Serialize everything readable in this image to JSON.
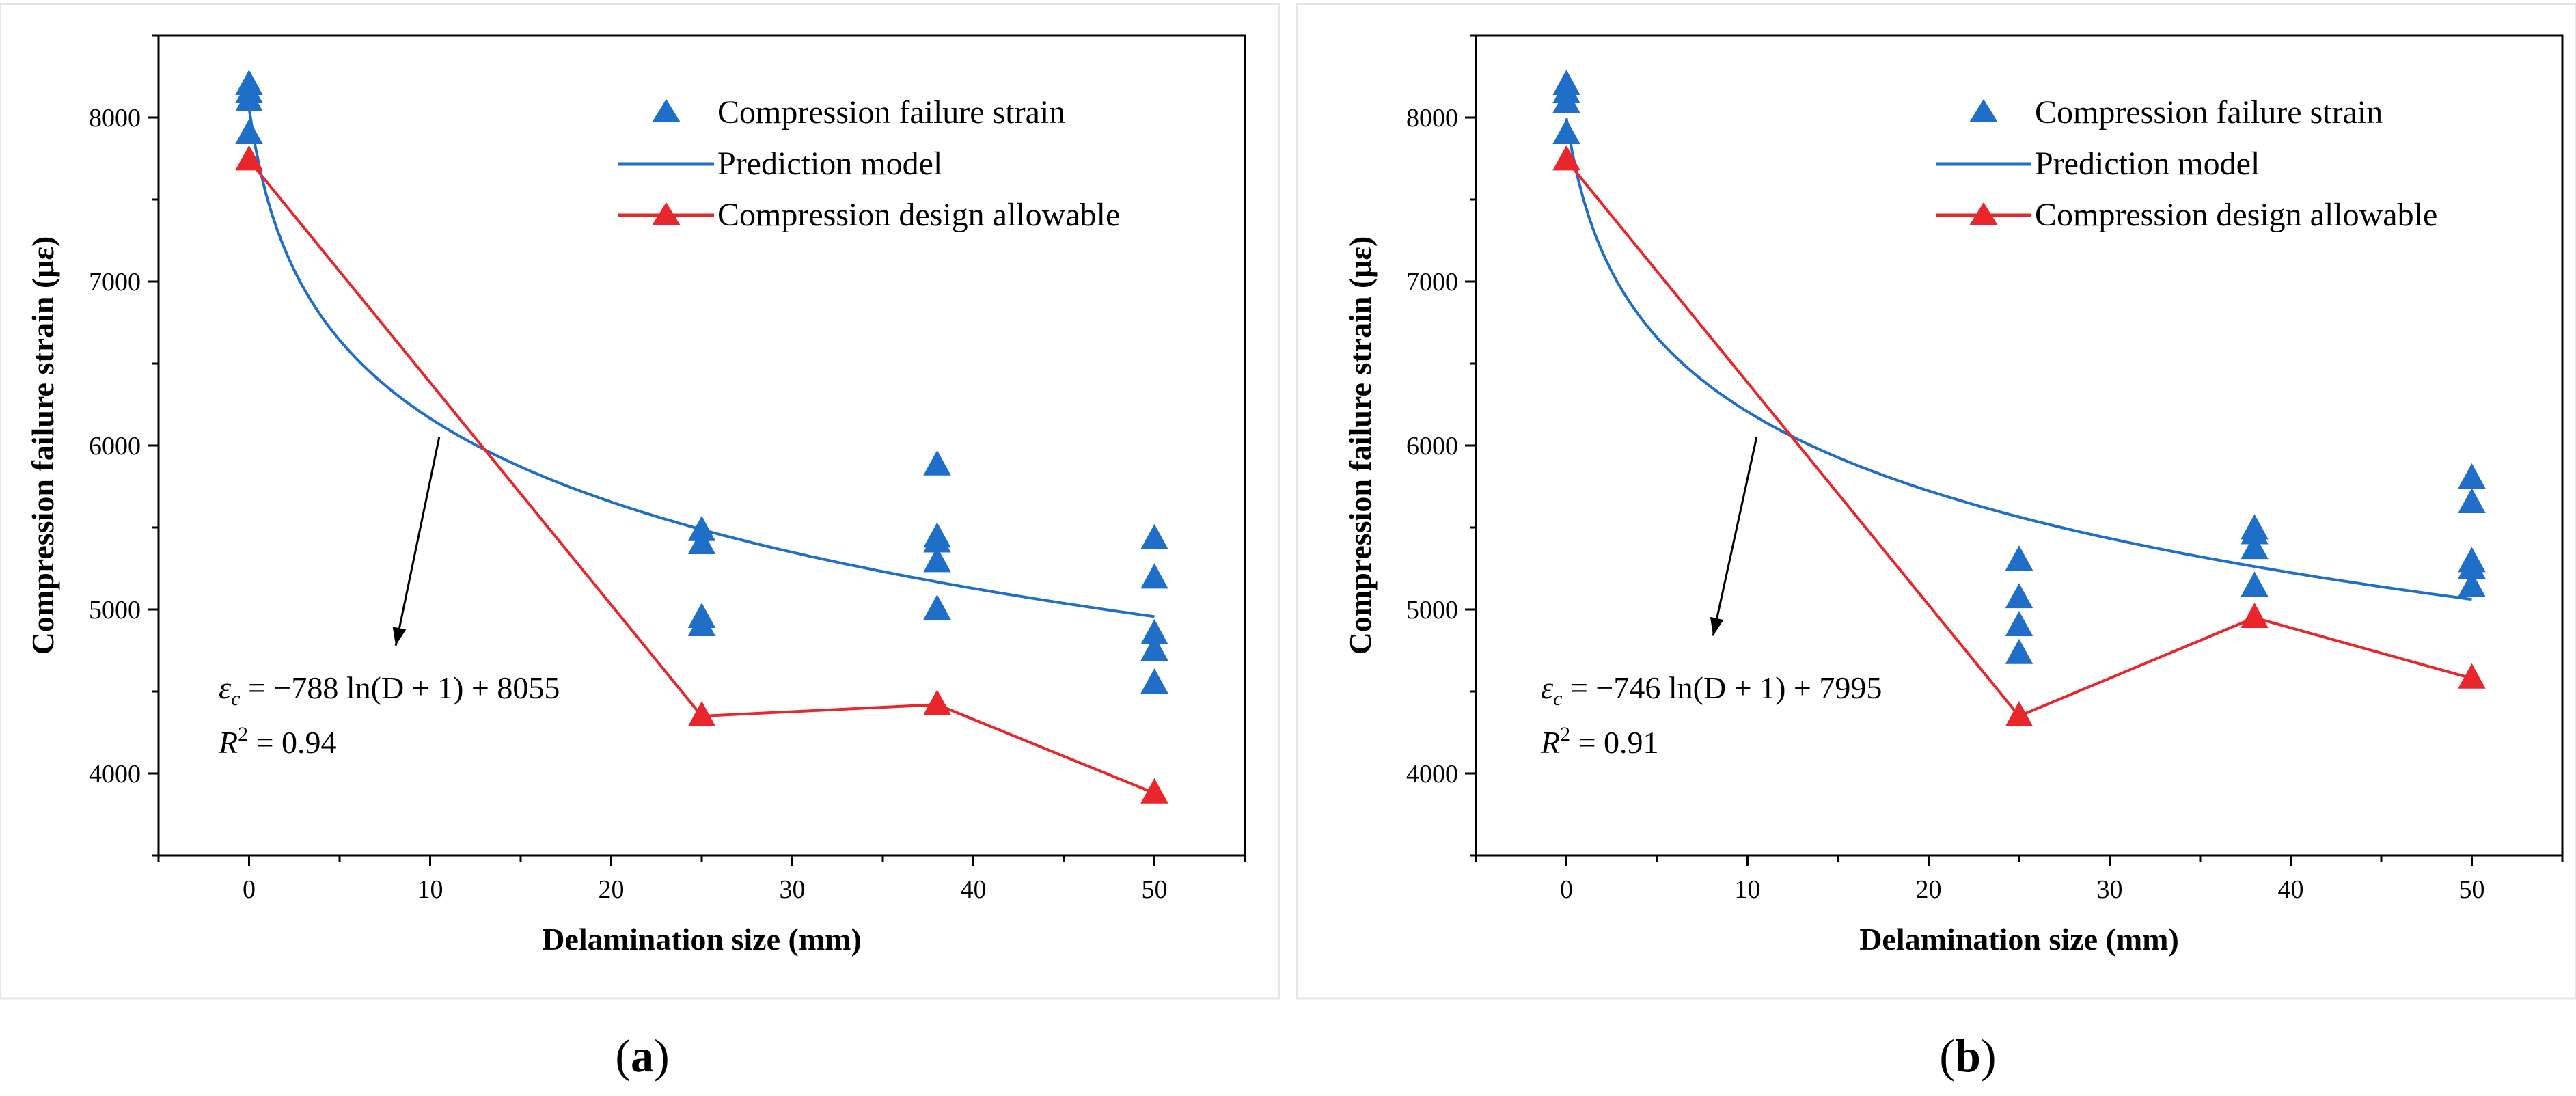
{
  "colors": {
    "observed": "#1f6fc9",
    "model": "#1f6fc9",
    "allowable": "#e8262b",
    "axis": "#000000",
    "annotation_arrow": "#000000"
  },
  "chart_data": [
    {
      "type": "scatter",
      "panel": "a",
      "caption": {
        "open": "(",
        "letter": "a",
        "close": ")"
      },
      "xlabel": "Delamination size (mm)",
      "ylabel": "Compression failure strain (με)",
      "xlim": [
        -5,
        55
      ],
      "ylim": [
        3500,
        8500
      ],
      "xticks": [
        0,
        10,
        20,
        30,
        40,
        50
      ],
      "yticks": [
        4000,
        5000,
        6000,
        7000,
        8000
      ],
      "legend_position": "top-right",
      "series": [
        {
          "name": "Compression failure strain",
          "kind": "markers",
          "marker": "triangle",
          "x": [
            0,
            0,
            0,
            0,
            25,
            25,
            25,
            25,
            38,
            38,
            38,
            38,
            38,
            50,
            50,
            50,
            50,
            50
          ],
          "y": [
            8200,
            8150,
            8100,
            7900,
            5480,
            5400,
            4950,
            4900,
            5880,
            5440,
            5410,
            5290,
            5000,
            5430,
            5190,
            4850,
            4750,
            4550
          ]
        },
        {
          "name": "Prediction model",
          "kind": "curve",
          "formula": {
            "a": -788,
            "b": 8055
          },
          "x_range": [
            0,
            50
          ]
        },
        {
          "name": "Compression design allowable",
          "kind": "line-markers",
          "marker": "triangle",
          "x": [
            0,
            25,
            38,
            50
          ],
          "y": [
            7740,
            4350,
            4420,
            3880
          ]
        }
      ],
      "annotation": {
        "equation": {
          "lhs": "ε",
          "sub": "c",
          "rhs": " = −788 ln(D + 1) + 8055"
        },
        "r2": {
          "r": "R",
          "sup": "2",
          "val": " = 0.94"
        },
        "arrow_from": [
          10.5,
          6050
        ],
        "arrow_to": [
          8.1,
          4780
        ]
      }
    },
    {
      "type": "scatter",
      "panel": "b",
      "caption": {
        "open": "(",
        "letter": "b",
        "close": ")"
      },
      "xlabel": "Delamination size (mm)",
      "ylabel": "Compression failure strain (με)",
      "xlim": [
        -5,
        55
      ],
      "ylim": [
        3500,
        8500
      ],
      "xticks": [
        0,
        10,
        20,
        30,
        40,
        50
      ],
      "yticks": [
        4000,
        5000,
        6000,
        7000,
        8000
      ],
      "legend_position": "top-right",
      "series": [
        {
          "name": "Compression failure strain",
          "kind": "markers",
          "marker": "triangle",
          "x": [
            0,
            0,
            0,
            0,
            25,
            25,
            25,
            25,
            38,
            38,
            38,
            38,
            50,
            50,
            50,
            50,
            50
          ],
          "y": [
            8200,
            8150,
            8090,
            7900,
            5300,
            5070,
            4900,
            4730,
            5490,
            5460,
            5370,
            5140,
            5800,
            5650,
            5290,
            5250,
            5140
          ]
        },
        {
          "name": "Prediction model",
          "kind": "curve",
          "formula": {
            "a": -746,
            "b": 7995
          },
          "x_range": [
            0,
            50
          ]
        },
        {
          "name": "Compression design allowable",
          "kind": "line-markers",
          "marker": "triangle",
          "x": [
            0,
            25,
            38,
            50
          ],
          "y": [
            7740,
            4350,
            4950,
            4580
          ]
        }
      ],
      "annotation": {
        "equation": {
          "lhs": "ε",
          "sub": "c",
          "rhs": " = −746 ln(D + 1) + 7995"
        },
        "r2": {
          "r": "R",
          "sup": "2",
          "val": " = 0.91"
        },
        "arrow_from": [
          10.5,
          6050
        ],
        "arrow_to": [
          8.1,
          4840
        ]
      }
    }
  ]
}
